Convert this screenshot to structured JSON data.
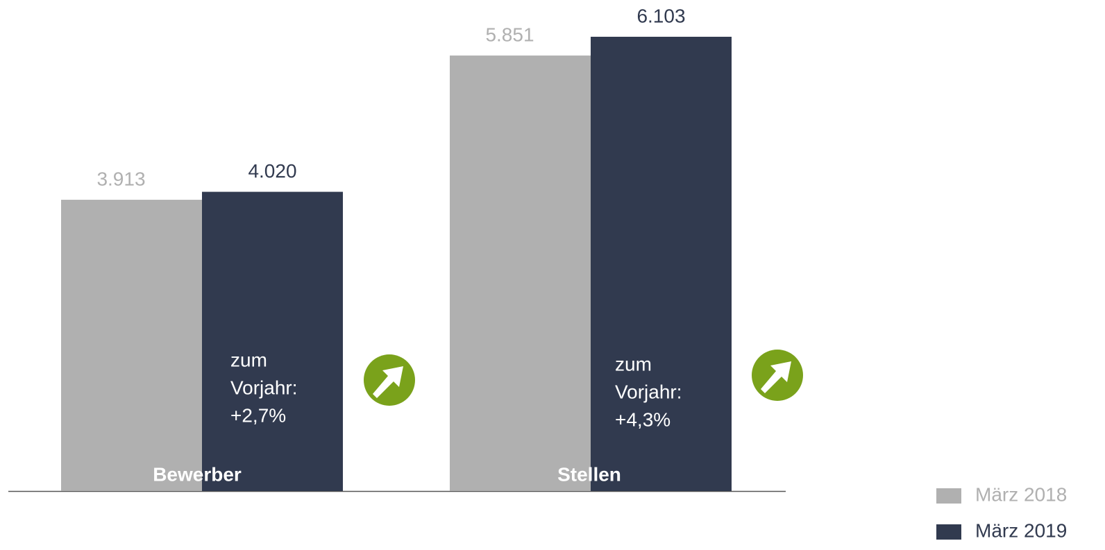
{
  "chart_data": {
    "type": "bar",
    "categories": [
      "Bewerber",
      "Stellen"
    ],
    "series": [
      {
        "name": "März 2018",
        "color": "#b0b0b0",
        "values": [
          3913,
          5851
        ],
        "value_labels": [
          "3.913",
          "5.851"
        ]
      },
      {
        "name": "März 2019",
        "color": "#313a4f",
        "values": [
          4020,
          6103
        ],
        "value_labels": [
          "4.020",
          "6.103"
        ]
      }
    ],
    "annotations": [
      {
        "lines": [
          "zum",
          "Vorjahr:",
          "+2,7%"
        ]
      },
      {
        "lines": [
          "zum",
          "Vorjahr:",
          "+4,3%"
        ]
      }
    ],
    "ylim": [
      0,
      6500
    ],
    "legend": "bottom-right"
  }
}
